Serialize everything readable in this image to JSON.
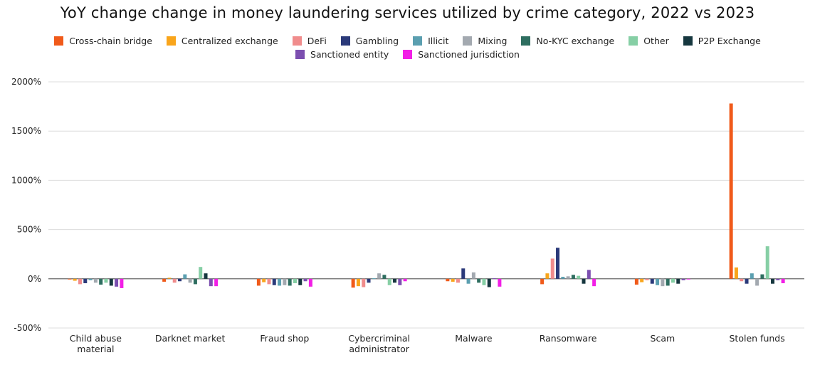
{
  "chart_data": {
    "type": "bar",
    "title": "YoY change change in money laundering services utilized by crime category, 2022 vs 2023",
    "xlabel": "",
    "ylabel": "",
    "ylim": [
      -500,
      2000
    ],
    "yticks": [
      -500,
      0,
      500,
      1000,
      1500,
      2000
    ],
    "ytick_labels": [
      "-500%",
      "0%",
      "500%",
      "1000%",
      "1500%",
      "2000%"
    ],
    "grid": true,
    "legend_position": "top-center",
    "categories": [
      [
        "Child abuse",
        "material"
      ],
      [
        "Darknet market"
      ],
      [
        "Fraud shop"
      ],
      [
        "Cybercriminal",
        "administrator"
      ],
      [
        "Malware"
      ],
      [
        "Ransomware"
      ],
      [
        "Scam"
      ],
      [
        "Stolen funds"
      ]
    ],
    "series": [
      {
        "name": "Cross-chain bridge",
        "color": "#f05a1a",
        "values": [
          -1,
          -30,
          -70,
          -90,
          -25,
          -55,
          -60,
          1780
        ]
      },
      {
        "name": "Centralized exchange",
        "color": "#f9a51b",
        "values": [
          -20,
          10,
          -35,
          -75,
          -30,
          55,
          -35,
          115
        ]
      },
      {
        "name": "DeFi",
        "color": "#f08c8c",
        "values": [
          -55,
          -40,
          -55,
          -85,
          -40,
          205,
          -15,
          -25
        ]
      },
      {
        "name": "Gambling",
        "color": "#2b3a7a",
        "values": [
          -45,
          -25,
          -65,
          -40,
          105,
          315,
          -50,
          -50
        ]
      },
      {
        "name": "Illicit",
        "color": "#5b9fb0",
        "values": [
          -15,
          45,
          -70,
          5,
          -50,
          20,
          -65,
          55
        ]
      },
      {
        "name": "Mixing",
        "color": "#a3a9b0",
        "values": [
          -40,
          -40,
          -65,
          55,
          65,
          25,
          -75,
          -70
        ]
      },
      {
        "name": "No-KYC exchange",
        "color": "#2e6e60",
        "values": [
          -60,
          -55,
          -70,
          40,
          -40,
          40,
          -70,
          45
        ]
      },
      {
        "name": "Other",
        "color": "#86cfa5",
        "values": [
          -40,
          120,
          -45,
          -65,
          -65,
          30,
          -40,
          330
        ]
      },
      {
        "name": "P2P Exchange",
        "color": "#16373f",
        "values": [
          -70,
          55,
          -65,
          -40,
          -85,
          -50,
          -50,
          -50
        ]
      },
      {
        "name": "Sanctioned entity",
        "color": "#7c4fb0",
        "values": [
          -80,
          -75,
          -25,
          -65,
          5,
          90,
          -15,
          -15
        ]
      },
      {
        "name": "Sanctioned jurisdiction",
        "color": "#f21fe6",
        "values": [
          -95,
          -75,
          -80,
          -25,
          -80,
          -75,
          -5,
          -45
        ]
      }
    ]
  }
}
